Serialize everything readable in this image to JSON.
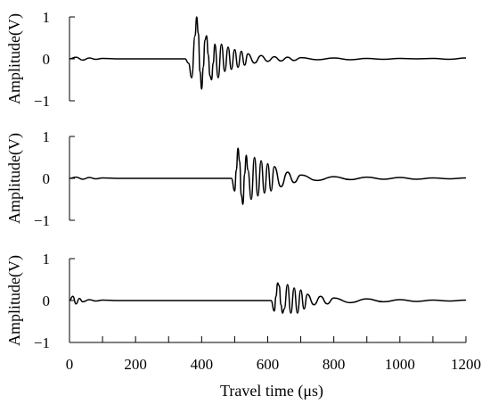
{
  "chart_data": {
    "type": "line",
    "xlabel": "Travel time (μs)",
    "xlim": [
      0,
      1200
    ],
    "x_ticks": [
      0,
      200,
      400,
      600,
      800,
      1000,
      1200
    ],
    "x_tick_labels": [
      "0",
      "200",
      "400",
      "600",
      "800",
      "1000",
      "1200"
    ],
    "x_minor_step": 100,
    "grid": false,
    "panels": [
      {
        "ylabel": "Amplitude(V)",
        "ylim": [
          -1,
          1
        ],
        "y_ticks": [
          1,
          0,
          -1
        ],
        "y_tick_labels": [
          "1",
          "0",
          "−1"
        ],
        "onset_us": 355,
        "series": [
          {
            "x": [
              0,
              20,
              40,
              60,
              80,
              100,
              150,
              200,
              250,
              300,
              350,
              360,
              370,
              380,
              385,
              390,
              395,
              400,
              405,
              410,
              415,
              420,
              425,
              430,
              435,
              440,
              450,
              460,
              470,
              480,
              490,
              500,
              510,
              520,
              530,
              540,
              560,
              580,
              600,
              620,
              640,
              660,
              680,
              700,
              750,
              800,
              850,
              900,
              950,
              1000,
              1050,
              1100,
              1150,
              1200
            ],
            "y": [
              0,
              0.04,
              -0.03,
              0.02,
              -0.01,
              0.01,
              0,
              0,
              0,
              0,
              0,
              -0.1,
              -0.45,
              0.55,
              1.0,
              0.6,
              -0.3,
              -0.72,
              -0.2,
              0.45,
              0.55,
              0.1,
              -0.4,
              -0.5,
              -0.1,
              0.35,
              -0.45,
              0.35,
              -0.3,
              0.28,
              -0.25,
              0.22,
              -0.2,
              0.18,
              -0.15,
              0.12,
              -0.1,
              0.08,
              -0.06,
              0.05,
              -0.05,
              0.04,
              -0.04,
              0.03,
              -0.02,
              0.02,
              -0.02,
              0.01,
              -0.01,
              0.01,
              0,
              0.01,
              -0.01,
              0.02
            ]
          }
        ]
      },
      {
        "ylabel": "Amplitude(V)",
        "ylim": [
          -1,
          1
        ],
        "y_ticks": [
          1,
          0,
          -1
        ],
        "y_tick_labels": [
          "1",
          "0",
          "−1"
        ],
        "onset_us": 490,
        "series": [
          {
            "x": [
              0,
              20,
              40,
              60,
              80,
              100,
              150,
              200,
              250,
              300,
              350,
              400,
              450,
              490,
              500,
              505,
              510,
              515,
              520,
              525,
              530,
              535,
              540,
              550,
              560,
              570,
              580,
              590,
              600,
              610,
              620,
              640,
              660,
              680,
              700,
              750,
              800,
              850,
              900,
              950,
              1000,
              1050,
              1100,
              1150,
              1200
            ],
            "y": [
              0,
              0.03,
              -0.02,
              0.02,
              -0.01,
              0.01,
              0,
              0,
              0,
              0,
              0,
              0,
              0,
              0,
              -0.3,
              0.2,
              0.72,
              0.4,
              -0.4,
              -0.62,
              0.1,
              0.55,
              0.2,
              -0.5,
              0.5,
              -0.42,
              0.42,
              -0.35,
              0.35,
              -0.3,
              0.28,
              -0.2,
              0.15,
              -0.1,
              0.08,
              -0.05,
              0.04,
              -0.03,
              0.03,
              -0.02,
              0.02,
              -0.02,
              0.01,
              -0.01,
              0.01
            ]
          }
        ]
      },
      {
        "ylabel": "Amplitude(V)",
        "ylim": [
          -1,
          1
        ],
        "y_ticks": [
          1,
          0,
          -1
        ],
        "y_tick_labels": [
          "1",
          "0",
          "−1"
        ],
        "onset_us": 610,
        "series": [
          {
            "x": [
              0,
              10,
              20,
              30,
              40,
              60,
              80,
              100,
              150,
              200,
              250,
              300,
              350,
              400,
              450,
              500,
              550,
              600,
              610,
              620,
              625,
              630,
              635,
              640,
              645,
              650,
              660,
              670,
              680,
              690,
              700,
              710,
              720,
              740,
              760,
              780,
              800,
              850,
              900,
              950,
              1000,
              1050,
              1100,
              1150,
              1200
            ],
            "y": [
              0,
              0.1,
              -0.08,
              0.05,
              -0.03,
              0.02,
              -0.01,
              0.01,
              0,
              0,
              0,
              0,
              0,
              0,
              0,
              0,
              0,
              0,
              0,
              -0.25,
              0.1,
              0.42,
              0.35,
              -0.1,
              -0.3,
              -0.2,
              0.38,
              -0.3,
              0.3,
              -0.3,
              0.25,
              -0.2,
              0.15,
              -0.1,
              0.1,
              -0.08,
              0.06,
              -0.05,
              0.04,
              -0.03,
              0.02,
              -0.02,
              0.01,
              -0.01,
              0.01
            ]
          }
        ]
      }
    ]
  }
}
